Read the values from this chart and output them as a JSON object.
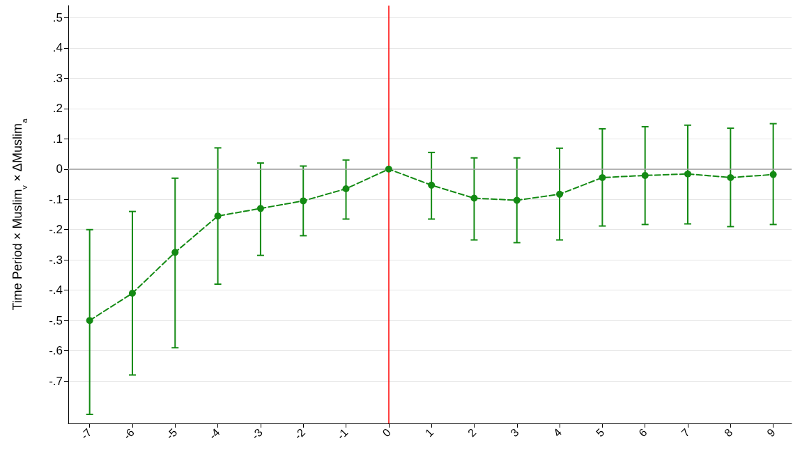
{
  "chart_data": {
    "type": "line",
    "ylabel": "Time Period × Muslim$_{v}$ × ΔMuslim$_{a}$",
    "x": [
      -7,
      -6,
      -5,
      -4,
      -3,
      -2,
      -1,
      0,
      1,
      2,
      3,
      4,
      5,
      6,
      7,
      8,
      9
    ],
    "series": [
      {
        "color": "#138a13",
        "values": [
          -0.5,
          -0.41,
          -0.275,
          -0.155,
          -0.13,
          -0.105,
          -0.065,
          0,
          -0.053,
          -0.096,
          -0.103,
          -0.083,
          -0.028,
          -0.021,
          -0.016,
          -0.028,
          -0.018
        ],
        "errors": [
          [
            -0.81,
            -0.2
          ],
          [
            -0.68,
            -0.14
          ],
          [
            -0.59,
            -0.03
          ],
          [
            -0.38,
            0.07
          ],
          [
            -0.285,
            0.02
          ],
          [
            -0.22,
            0.01
          ],
          [
            -0.165,
            0.03
          ],
          null,
          [
            -0.165,
            0.055
          ],
          [
            -0.234,
            0.037
          ],
          [
            -0.243,
            0.037
          ],
          [
            -0.234,
            0.069
          ],
          [
            -0.188,
            0.133
          ],
          [
            -0.183,
            0.14
          ],
          [
            -0.181,
            0.145
          ],
          [
            -0.19,
            0.135
          ],
          [
            -0.183,
            0.15
          ]
        ]
      }
    ],
    "xlim": [
      -7.5,
      9.43
    ],
    "xticks": [
      -7,
      -6,
      -5,
      -4,
      -3,
      -2,
      -1,
      0,
      1,
      2,
      3,
      4,
      5,
      6,
      7,
      8,
      9
    ],
    "ylim": [
      -0.84,
      0.54
    ],
    "yticks": [
      {
        "value": -0.7,
        "label": "-.7"
      },
      {
        "value": -0.6,
        "label": "-.6"
      },
      {
        "value": -0.5,
        "label": "-.5"
      },
      {
        "value": -0.4,
        "label": "-.4"
      },
      {
        "value": -0.3,
        "label": "-.3"
      },
      {
        "value": -0.2,
        "label": "-.2"
      },
      {
        "value": -0.1,
        "label": "-.1"
      },
      0,
      {
        "value": 0.1,
        "label": ".1"
      },
      {
        "value": 0.2,
        "label": ".2"
      },
      {
        "value": 0.3,
        "label": ".3"
      },
      {
        "value": 0.4,
        "label": ".4"
      },
      {
        "value": 0.5,
        "label": ".5"
      }
    ],
    "ref_lines": [
      {
        "axis": "y",
        "value": 0,
        "color": "#a0a0a0"
      },
      {
        "axis": "x",
        "value": 0,
        "color": "#ff0000"
      }
    ],
    "grid": "y",
    "marker": "circle",
    "line_style": "dashed"
  }
}
